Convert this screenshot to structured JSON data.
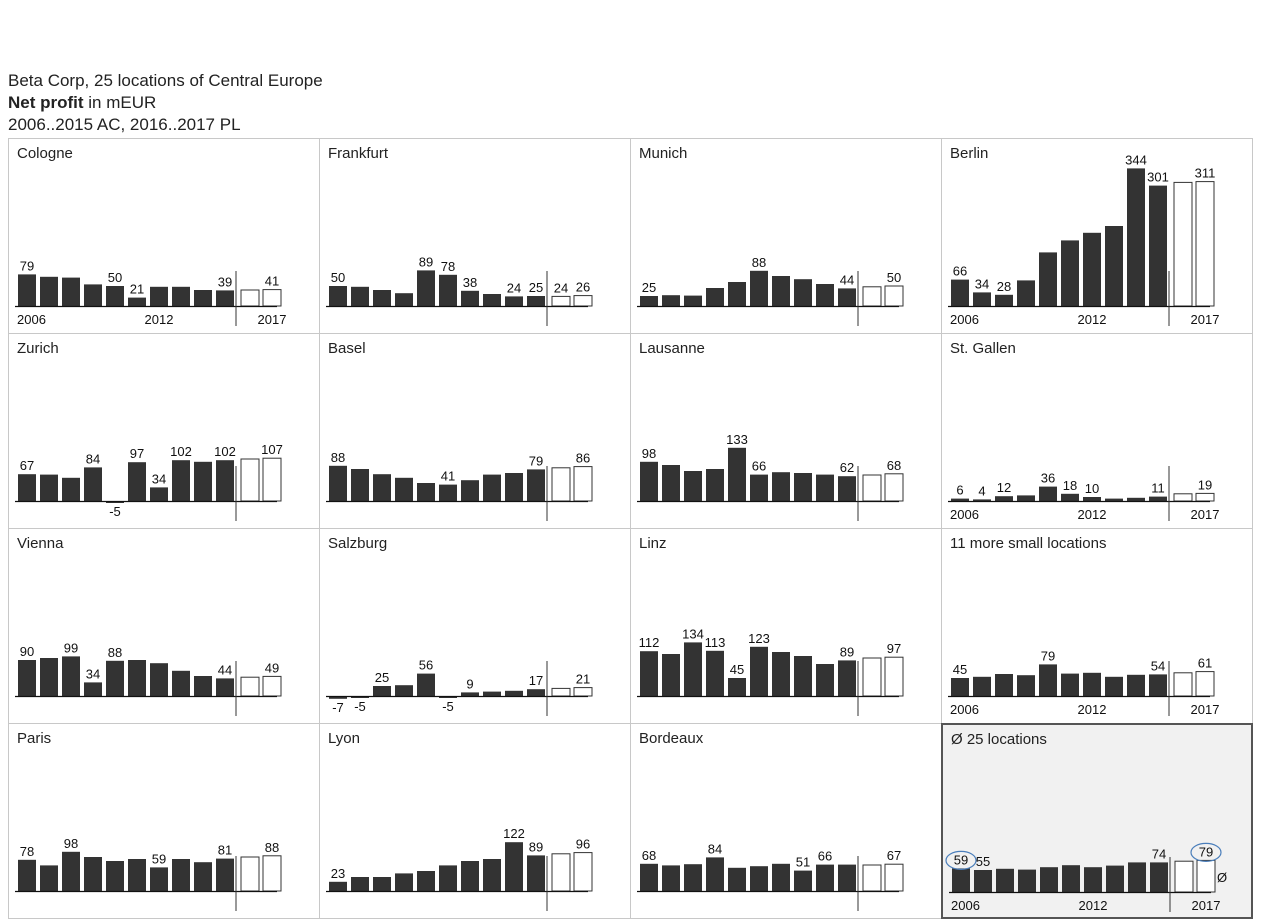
{
  "header": {
    "line1": "Beta Corp, 25 locations of Central Europe",
    "line2_bold": "Net profit",
    "line2_rest": " in mEUR",
    "line3": "2006..2015 AC, 2016..2017 PL"
  },
  "chart_data": {
    "type": "bar",
    "title": "Net profit in mEUR",
    "x": [
      2006,
      2007,
      2008,
      2009,
      2010,
      2011,
      2012,
      2013,
      2014,
      2015,
      2016,
      2017
    ],
    "actual_years": "2006..2015",
    "plan_years": "2016..2017",
    "colors": {
      "actual": "#333333",
      "plan": "#ffffff",
      "highlight": "#4a7ebb"
    },
    "tick_labels": [
      "2006",
      "2012",
      "2017"
    ],
    "avg_symbol": "Ø",
    "panels": [
      {
        "name": "Cologne",
        "values": [
          79,
          73,
          71,
          54,
          50,
          21,
          48,
          48,
          40,
          39,
          40,
          41
        ],
        "labels": {
          "0": "79",
          "4": "50",
          "5": "21",
          "9": "39",
          "11": "41"
        },
        "ticks": true
      },
      {
        "name": "Frankfurt",
        "values": [
          50,
          48,
          40,
          32,
          89,
          78,
          38,
          30,
          24,
          25,
          24,
          26
        ],
        "labels": {
          "0": "50",
          "4": "89",
          "5": "78",
          "6": "38",
          "8": "24",
          "9": "25",
          "10": "24",
          "11": "26"
        },
        "ticks": false
      },
      {
        "name": "Munich",
        "values": [
          25,
          27,
          26,
          45,
          60,
          88,
          75,
          67,
          55,
          44,
          48,
          50
        ],
        "labels": {
          "0": "25",
          "5": "88",
          "9": "44",
          "11": "50"
        },
        "ticks": false
      },
      {
        "name": "Berlin",
        "values": [
          66,
          34,
          28,
          64,
          134,
          164,
          183,
          200,
          344,
          301,
          309,
          311
        ],
        "labels": {
          "0": "66",
          "1": "34",
          "2": "28",
          "8": "344",
          "9": "301",
          "11": "311"
        },
        "ticks": true
      },
      {
        "name": "Zurich",
        "values": [
          67,
          66,
          58,
          84,
          -5,
          97,
          34,
          102,
          98,
          102,
          105,
          107
        ],
        "labels": {
          "0": "67",
          "3": "84",
          "4": "-5",
          "5": "97",
          "6": "34",
          "7": "102",
          "9": "102",
          "11": "107"
        },
        "ticks": false
      },
      {
        "name": "Basel",
        "values": [
          88,
          80,
          67,
          58,
          45,
          41,
          52,
          66,
          70,
          79,
          83,
          86
        ],
        "labels": {
          "0": "88",
          "5": "41",
          "9": "79",
          "11": "86"
        },
        "ticks": false
      },
      {
        "name": "Lausanne",
        "values": [
          98,
          90,
          75,
          80,
          133,
          66,
          72,
          70,
          66,
          62,
          65,
          68
        ],
        "labels": {
          "0": "98",
          "4": "133",
          "5": "66",
          "9": "62",
          "11": "68"
        },
        "ticks": false
      },
      {
        "name": "St. Gallen",
        "values": [
          6,
          4,
          12,
          14,
          36,
          18,
          10,
          6,
          8,
          11,
          18,
          19
        ],
        "labels": {
          "0": "6",
          "1": "4",
          "2": "12",
          "4": "36",
          "5": "18",
          "6": "10",
          "9": "11",
          "11": "19"
        },
        "ticks": true
      },
      {
        "name": "Vienna",
        "values": [
          90,
          95,
          99,
          34,
          88,
          90,
          82,
          63,
          50,
          44,
          47,
          49
        ],
        "labels": {
          "0": "90",
          "2": "99",
          "3": "34",
          "4": "88",
          "9": "44",
          "11": "49"
        },
        "ticks": false
      },
      {
        "name": "Salzburg",
        "values": [
          -7,
          -5,
          25,
          27,
          56,
          -5,
          9,
          11,
          13,
          17,
          19,
          21
        ],
        "labels": {
          "0": "-7",
          "1": "-5",
          "2": "25",
          "4": "56",
          "5": "-5",
          "6": "9",
          "9": "17",
          "11": "21"
        },
        "ticks": false
      },
      {
        "name": "Linz",
        "values": [
          112,
          105,
          134,
          113,
          45,
          123,
          110,
          100,
          80,
          89,
          95,
          97
        ],
        "labels": {
          "0": "112",
          "2": "134",
          "3": "113",
          "4": "45",
          "5": "123",
          "9": "89",
          "11": "97"
        },
        "ticks": false
      },
      {
        "name": "11 more small locations",
        "values": [
          45,
          48,
          55,
          52,
          79,
          56,
          58,
          48,
          53,
          54,
          58,
          61
        ],
        "labels": {
          "0": "45",
          "4": "79",
          "9": "54",
          "11": "61"
        },
        "ticks": true
      },
      {
        "name": "Paris",
        "values": [
          78,
          64,
          98,
          85,
          75,
          80,
          59,
          80,
          72,
          81,
          85,
          88
        ],
        "labels": {
          "0": "78",
          "2": "98",
          "6": "59",
          "9": "81",
          "11": "88"
        },
        "ticks": false
      },
      {
        "name": "Lyon",
        "values": [
          23,
          35,
          35,
          44,
          50,
          64,
          75,
          80,
          122,
          89,
          93,
          96
        ],
        "labels": {
          "0": "23",
          "8": "122",
          "9": "89",
          "11": "96"
        },
        "ticks": false
      },
      {
        "name": "Bordeaux",
        "values": [
          68,
          64,
          67,
          84,
          58,
          62,
          68,
          51,
          66,
          66,
          65,
          67
        ],
        "labels": {
          "0": "68",
          "3": "84",
          "7": "51",
          "8": "66",
          "11": "67"
        },
        "ticks": false
      },
      {
        "name": "Ø 25 locations",
        "values": [
          59,
          55,
          58,
          56,
          62,
          67,
          62,
          66,
          74,
          74,
          77,
          79
        ],
        "labels": {
          "0": "59",
          "1": "55",
          "9": "74",
          "11": "79"
        },
        "ticks": true,
        "avg": true,
        "highlight": [
          0,
          11
        ]
      }
    ]
  }
}
